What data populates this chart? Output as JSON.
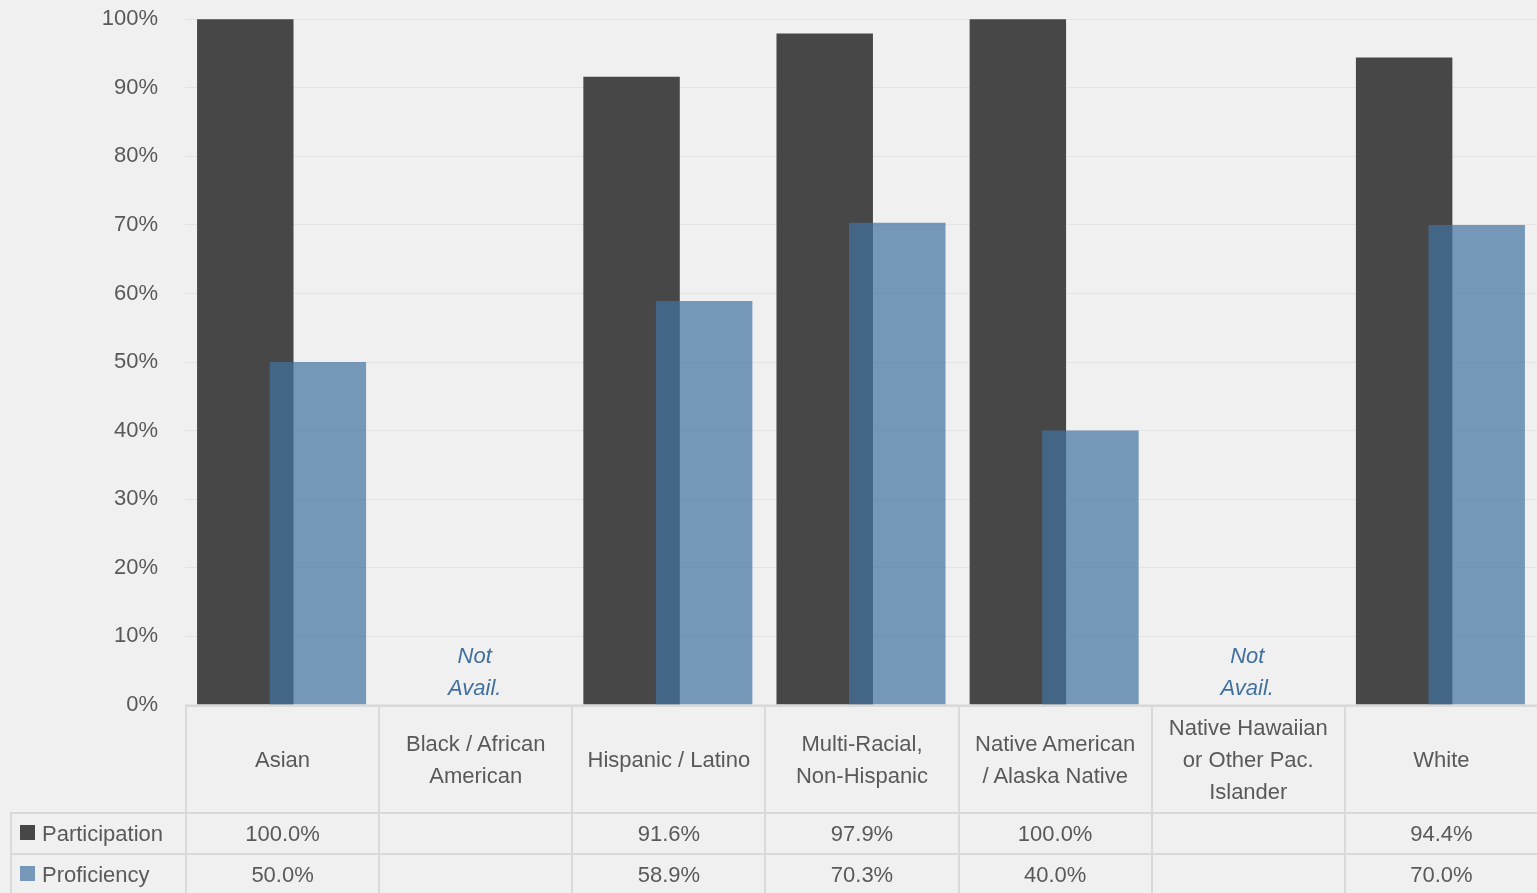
{
  "chart_data": {
    "type": "bar",
    "categories": [
      "Asian",
      "Black / African American",
      "Hispanic / Latino",
      "Multi-Racial, Non-Hispanic",
      "Native American / Alaska Native",
      "Native Hawaiian or Other Pac. Islander",
      "White"
    ],
    "series": [
      {
        "name": "Participation",
        "color": "#474747",
        "values": [
          100,
          null,
          91.6,
          97.9,
          100,
          null,
          94.4
        ],
        "value_labels": [
          "100.0%",
          null,
          "91.6%",
          "97.9%",
          "100.0%",
          null,
          "94.4%"
        ]
      },
      {
        "name": "Proficiency",
        "color": "#7597b8",
        "values": [
          50,
          null,
          58.9,
          70.3,
          40,
          null,
          70
        ],
        "value_labels": [
          "50.0%",
          null,
          "58.9%",
          "70.3%",
          "40.0%",
          null,
          "70.0%"
        ]
      }
    ],
    "ylim": [
      0,
      100
    ],
    "yticks": [
      {
        "value": 0,
        "label": "0%"
      },
      {
        "value": 10,
        "label": "10%"
      },
      {
        "value": 20,
        "label": "20%"
      },
      {
        "value": 30,
        "label": "30%"
      },
      {
        "value": 40,
        "label": "40%"
      },
      {
        "value": 50,
        "label": "50%"
      },
      {
        "value": 60,
        "label": "60%"
      },
      {
        "value": 70,
        "label": "70%"
      },
      {
        "value": 80,
        "label": "80%"
      },
      {
        "value": 90,
        "label": "90%"
      },
      {
        "value": 100,
        "label": "100%"
      }
    ],
    "grid": "y",
    "legend": "bottom",
    "annotations": [
      "Not Avail.",
      "Not Avail."
    ]
  }
}
